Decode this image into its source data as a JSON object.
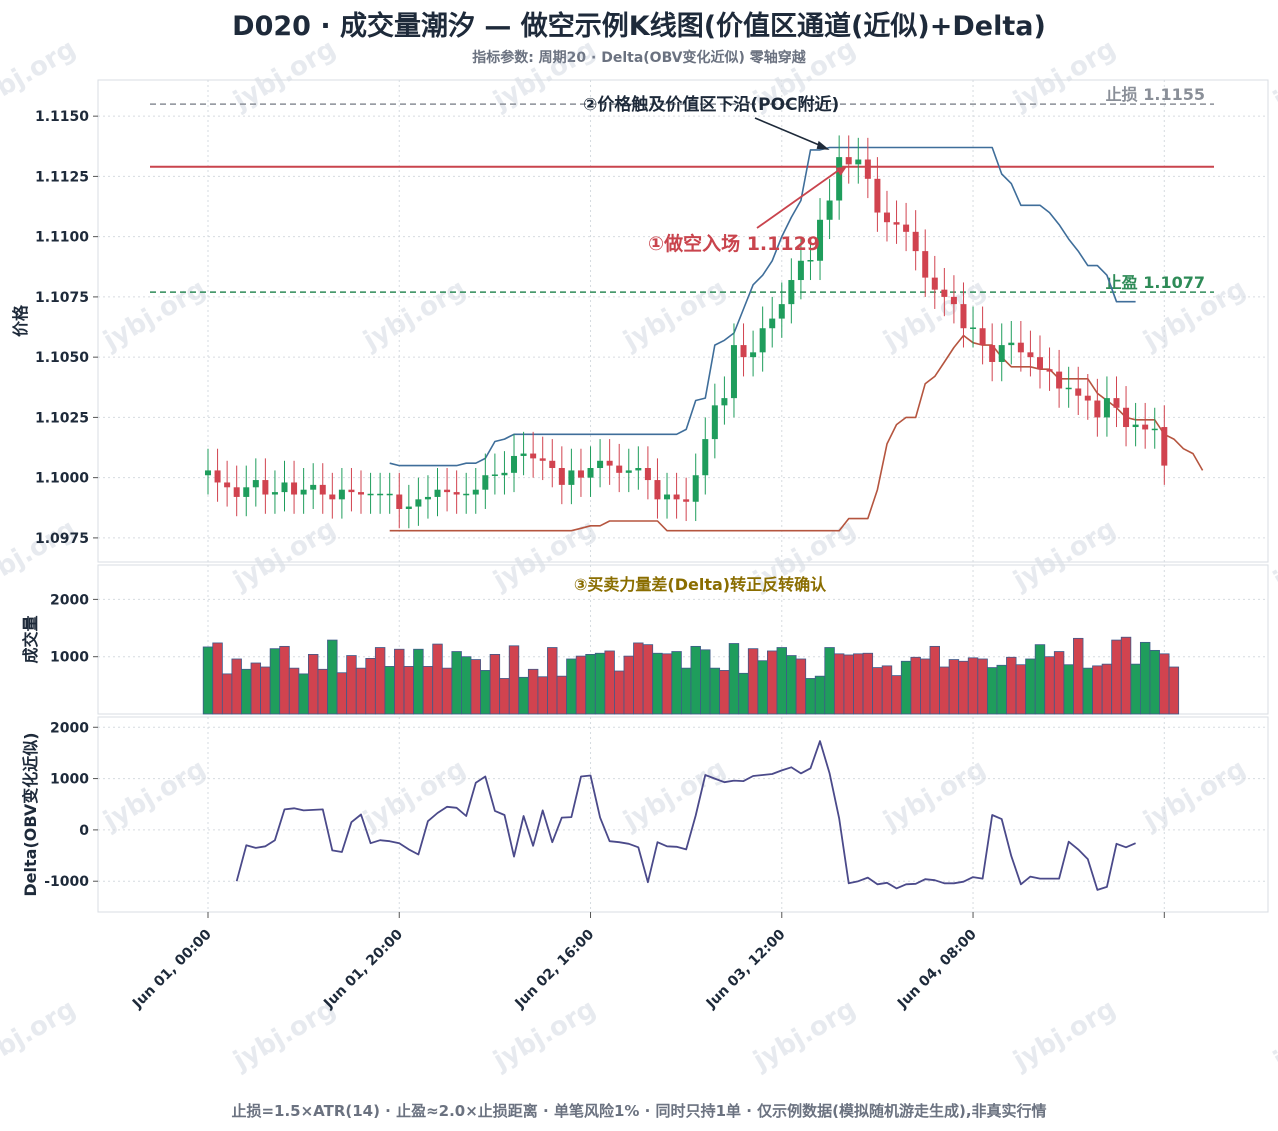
{
  "title": "D020 · 成交量潮汐 — 做空示例K线图(价值区通道(近似)+Delta)",
  "subtitle": "指标参数: 周期20 · Delta(OBV变化近似) 零轴穿越",
  "footer": "止损=1.5×ATR(14) · 止盈≈2.0×止损距离 · 单笔风险1% · 同时只持1单 · 仅示例数据(模拟随机游走生成),非真实行情",
  "watermark": "jybj.org",
  "colors": {
    "up": "#1f9d5c",
    "down": "#d1434f",
    "va_upper": "#3f6e9a",
    "va_lower": "#b5553f",
    "entry": "#c9444d",
    "stop": "#8a8f98",
    "target": "#2e8b57",
    "delta": "#4b4a8a",
    "annot_dark": "#1e2a3a",
    "annot_red": "#c9444d",
    "annot_gold": "#8a6d00"
  },
  "chart_data": [
    {
      "type": "candlestick",
      "ylabel": "价格",
      "ylim": [
        1.0965,
        1.1165
      ],
      "yticks": [
        "1.0975",
        "1.1000",
        "1.1025",
        "1.1050",
        "1.1075",
        "1.1100",
        "1.1125",
        "1.1150"
      ],
      "xticks": [
        {
          "index": 0,
          "label": "Jun 01, 00:00"
        },
        {
          "index": 20,
          "label": "Jun 01, 20:00"
        },
        {
          "index": 40,
          "label": "Jun 02, 16:00"
        },
        {
          "index": 60,
          "label": "Jun 03, 12:00"
        },
        {
          "index": 80,
          "label": "Jun 04, 08:00"
        },
        {
          "index": 100,
          "label": ""
        }
      ],
      "close": [
        1.1003,
        1.0998,
        1.0996,
        1.0992,
        1.0996,
        1.0999,
        1.0993,
        1.0994,
        1.0998,
        1.0993,
        1.0995,
        1.0997,
        1.0993,
        1.0991,
        1.0995,
        1.0994,
        1.0993,
        1.0993,
        1.0993,
        1.0993,
        1.0987,
        1.0988,
        1.0991,
        1.0992,
        1.0995,
        1.0994,
        1.0993,
        1.0993,
        1.0995,
        1.1001,
        1.1001,
        1.1002,
        1.1009,
        1.101,
        1.1008,
        1.1007,
        1.1004,
        1.0997,
        1.1003,
        1.1,
        1.1004,
        1.1007,
        1.1005,
        1.1002,
        1.1003,
        1.1004,
        1.0999,
        1.0991,
        1.0993,
        1.0991,
        1.099,
        1.1001,
        1.1016,
        1.103,
        1.1033,
        1.1055,
        1.105,
        1.1052,
        1.1062,
        1.1066,
        1.1072,
        1.1082,
        1.109,
        1.109,
        1.1107,
        1.1115,
        1.1133,
        1.113,
        1.1132,
        1.1124,
        1.111,
        1.1106,
        1.1105,
        1.1102,
        1.1094,
        1.1083,
        1.1078,
        1.1075,
        1.1072,
        1.1062,
        1.1062,
        1.1055,
        1.1048,
        1.1055,
        1.1056,
        1.1052,
        1.105,
        1.1045,
        1.1044,
        1.1037,
        1.1037,
        1.1034,
        1.1032,
        1.1025,
        1.1033,
        1.1029,
        1.1021,
        1.1022,
        1.102,
        1.102,
        1.1005
      ],
      "open": [
        1.1001,
        1.1003,
        1.0998,
        1.0996,
        1.0992,
        1.0996,
        1.0999,
        1.0993,
        1.0994,
        1.0998,
        1.0993,
        1.0995,
        1.0997,
        1.0993,
        1.0991,
        1.0995,
        1.0994,
        1.0993,
        1.0993,
        1.0993,
        1.0993,
        1.0987,
        1.0988,
        1.0991,
        1.0992,
        1.0995,
        1.0994,
        1.0993,
        1.0993,
        1.0995,
        1.1001,
        1.1001,
        1.1002,
        1.1009,
        1.101,
        1.1008,
        1.1007,
        1.1004,
        1.0997,
        1.1003,
        1.1,
        1.1004,
        1.1007,
        1.1005,
        1.1002,
        1.1003,
        1.1004,
        1.0999,
        1.0991,
        1.0993,
        1.0991,
        1.099,
        1.1001,
        1.1016,
        1.103,
        1.1033,
        1.1055,
        1.105,
        1.1052,
        1.1062,
        1.1066,
        1.1072,
        1.1082,
        1.109,
        1.109,
        1.1107,
        1.1115,
        1.1133,
        1.113,
        1.1132,
        1.1124,
        1.111,
        1.1106,
        1.1105,
        1.1102,
        1.1094,
        1.1083,
        1.1078,
        1.1075,
        1.1072,
        1.1062,
        1.1062,
        1.1055,
        1.1048,
        1.1055,
        1.1056,
        1.1052,
        1.105,
        1.1045,
        1.1044,
        1.1037,
        1.1037,
        1.1034,
        1.1032,
        1.1025,
        1.1033,
        1.1029,
        1.1021,
        1.1022,
        1.102,
        1.1021
      ],
      "value_area_upper": [
        null,
        null,
        null,
        null,
        null,
        null,
        null,
        null,
        null,
        null,
        null,
        null,
        null,
        null,
        null,
        null,
        null,
        null,
        null,
        1.1006,
        1.1005,
        1.1005,
        1.1005,
        1.1005,
        1.1005,
        1.1005,
        1.1005,
        1.1006,
        1.1006,
        1.1008,
        1.1015,
        1.1016,
        1.1018,
        1.1018,
        1.1018,
        1.1018,
        1.1018,
        1.1018,
        1.1018,
        1.1018,
        1.1018,
        1.1018,
        1.1018,
        1.1018,
        1.1018,
        1.1018,
        1.1018,
        1.1018,
        1.1018,
        1.1018,
        1.102,
        1.1032,
        1.1033,
        1.1055,
        1.1057,
        1.106,
        1.107,
        1.108,
        1.1084,
        1.109,
        1.11,
        1.1108,
        1.1115,
        1.1136,
        1.1136,
        1.1137,
        1.1137,
        1.1137,
        1.1137,
        1.1137,
        1.1137,
        1.1137,
        1.1137,
        1.1137,
        1.1137,
        1.1137,
        1.1137,
        1.1137,
        1.1137,
        1.1137,
        1.1137,
        1.1137,
        1.1137,
        1.1126,
        1.1122,
        1.1113,
        1.1113,
        1.1113,
        1.111,
        1.1105,
        1.1099,
        1.1094,
        1.1088,
        1.1088,
        1.1084,
        1.1073,
        1.1073,
        1.1073
      ],
      "value_area_lower": [
        null,
        null,
        null,
        null,
        null,
        null,
        null,
        null,
        null,
        null,
        null,
        null,
        null,
        null,
        null,
        null,
        null,
        null,
        null,
        1.0978,
        1.0978,
        1.0978,
        1.0978,
        1.0978,
        1.0978,
        1.0978,
        1.0978,
        1.0978,
        1.0978,
        1.0978,
        1.0978,
        1.0978,
        1.0978,
        1.0978,
        1.0978,
        1.0978,
        1.0978,
        1.0978,
        1.0978,
        1.0979,
        1.098,
        1.098,
        1.0982,
        1.0982,
        1.0982,
        1.0982,
        1.0982,
        1.0982,
        1.0978,
        1.0978,
        1.0978,
        1.0978,
        1.0978,
        1.0978,
        1.0978,
        1.0978,
        1.0978,
        1.0978,
        1.0978,
        1.0978,
        1.0978,
        1.0978,
        1.0978,
        1.0978,
        1.0978,
        1.0978,
        1.0978,
        1.0983,
        1.0983,
        1.0983,
        1.0995,
        1.1014,
        1.1022,
        1.1025,
        1.1025,
        1.1039,
        1.1042,
        1.1048,
        1.1054,
        1.1059,
        1.1056,
        1.1055,
        1.1055,
        1.105,
        1.1046,
        1.1046,
        1.1046,
        1.1045,
        1.1045,
        1.1041,
        1.1041,
        1.1041,
        1.1041,
        1.1035,
        1.1032,
        1.1029,
        1.1025,
        1.1024,
        1.1024,
        1.1024,
        1.1018,
        1.1016,
        1.1012,
        1.101,
        1.1003
      ],
      "entry_level": 1.1129,
      "stop_level": 1.1155,
      "target_level": 1.1077,
      "stop_label": "止损 1.1155",
      "target_label": "止盈 1.1077",
      "annotations": [
        {
          "text": "①做空入场 1.1129",
          "x": 67,
          "y": 1.1129
        },
        {
          "text": "②价格触及价值区下沿(POC附近)",
          "x": 65,
          "y": 1.1136
        }
      ]
    },
    {
      "type": "bar",
      "ylabel": "成交量",
      "ylim": [
        0,
        2600
      ],
      "yticks": [
        "1000",
        "2000"
      ],
      "values": [
        1170,
        1240,
        700,
        960,
        780,
        890,
        820,
        1140,
        1180,
        800,
        700,
        1040,
        780,
        1290,
        720,
        1020,
        800,
        970,
        1160,
        830,
        1130,
        830,
        1130,
        830,
        1220,
        800,
        1090,
        1000,
        950,
        760,
        1040,
        620,
        1190,
        640,
        780,
        650,
        1160,
        660,
        960,
        1010,
        1040,
        1060,
        1100,
        750,
        1010,
        1240,
        1210,
        1060,
        1050,
        1090,
        800,
        1180,
        1120,
        800,
        760,
        1230,
        710,
        1140,
        930,
        1100,
        1160,
        1020,
        960,
        620,
        660,
        1160,
        1050,
        1030,
        1050,
        1060,
        810,
        840,
        670,
        920,
        990,
        960,
        1180,
        820,
        950,
        920,
        980,
        960,
        810,
        850,
        990,
        860,
        960,
        1210,
        1000,
        1090,
        860,
        1320,
        800,
        840,
        870,
        1290,
        1340,
        870,
        1250,
        1110,
        1050,
        820
      ],
      "direction": [
        "up",
        "down",
        "down",
        "down",
        "up",
        "down",
        "down",
        "up",
        "down",
        "down",
        "up",
        "down",
        "down",
        "up",
        "down",
        "down",
        "down",
        "down",
        "down",
        "up",
        "down",
        "down",
        "up",
        "down",
        "down",
        "down",
        "up",
        "up",
        "down",
        "up",
        "down",
        "down",
        "down",
        "up",
        "down",
        "down",
        "down",
        "down",
        "up",
        "down",
        "up",
        "up",
        "down",
        "down",
        "down",
        "down",
        "down",
        "up",
        "down",
        "up",
        "up",
        "up",
        "up",
        "up",
        "down",
        "up",
        "up",
        "down",
        "up",
        "down",
        "up",
        "up",
        "down",
        "up",
        "up",
        "up",
        "down",
        "down",
        "down",
        "down",
        "down",
        "down",
        "down",
        "up",
        "down",
        "down",
        "down",
        "down",
        "down",
        "down",
        "down",
        "down",
        "up",
        "up",
        "down",
        "down",
        "up",
        "up",
        "down",
        "down",
        "up",
        "down",
        "up",
        "down",
        "down",
        "down",
        "down",
        "up",
        "up",
        "up",
        "down"
      ],
      "annotation": "③买卖力量差(Delta)转正反转确认"
    },
    {
      "type": "line",
      "ylabel": "Delta(OBV变化近似)",
      "ylim": [
        -1600,
        2200
      ],
      "yticks": [
        "-1000",
        "0",
        "1000",
        "2000"
      ],
      "values": [
        null,
        null,
        null,
        -1000,
        -300,
        -350,
        -320,
        -200,
        400,
        420,
        380,
        390,
        400,
        -400,
        -430,
        150,
        300,
        -260,
        -200,
        -220,
        -260,
        -380,
        -480,
        170,
        330,
        450,
        430,
        270,
        920,
        1040,
        370,
        290,
        -520,
        270,
        -310,
        380,
        -240,
        240,
        250,
        1040,
        1060,
        240,
        -220,
        -240,
        -270,
        -340,
        -1020,
        -240,
        -320,
        -330,
        -380,
        280,
        1070,
        1000,
        930,
        960,
        950,
        1050,
        1070,
        1090,
        1160,
        1220,
        1100,
        1200,
        1730,
        1100,
        220,
        -1040,
        -1000,
        -930,
        -1060,
        -1030,
        -1140,
        -1060,
        -1050,
        -960,
        -980,
        -1040,
        -1040,
        -1010,
        -920,
        -950,
        290,
        210,
        -510,
        -1060,
        -910,
        -950,
        -950,
        -950,
        -230,
        -380,
        -570,
        -1170,
        -1110,
        -270,
        -340,
        -260
      ],
      "xticks": [
        "Jun 01, 00:00",
        "Jun 01, 20:00",
        "Jun 02, 16:00",
        "Jun 03, 12:00",
        "Jun 04, 08:00"
      ]
    }
  ]
}
